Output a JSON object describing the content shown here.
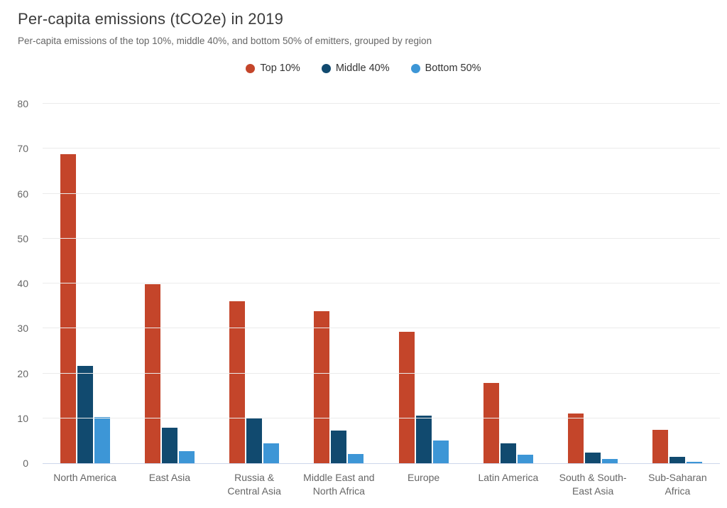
{
  "header": {
    "title": "Per-capita emissions (tCO2e) in 2019",
    "subtitle": "Per-capita emissions of the top 10%, middle 40%, and bottom 50% of emitters, grouped by region"
  },
  "colors": {
    "background": "#ffffff",
    "grid": "#ebebeb",
    "axis_line": "#ccd6eb",
    "title_text": "#3b3b3b",
    "muted_text": "#666666",
    "legend_text": "#333333",
    "top10": "#c4452a",
    "middle40": "#114a6f",
    "bottom50": "#3d96d6"
  },
  "chart_data": {
    "type": "bar",
    "title": "Per-capita emissions (tCO2e) in 2019",
    "subtitle": "Per-capita emissions of the top 10%, middle 40%, and bottom 50% of emitters, grouped by region",
    "categories": [
      "North America",
      "East Asia",
      "Russia &\nCentral Asia",
      "Middle East and\nNorth Africa",
      "Europe",
      "Latin America",
      "South & South-\nEast Asia",
      "Sub-Saharan\nAfrica"
    ],
    "series": [
      {
        "name": "Top 10%",
        "color": "#c4452a",
        "values": [
          68.7,
          39.9,
          36.0,
          33.8,
          29.3,
          17.8,
          11.1,
          7.4
        ]
      },
      {
        "name": "Middle 40%",
        "color": "#114a6f",
        "values": [
          21.6,
          7.9,
          9.9,
          7.3,
          10.6,
          4.5,
          2.3,
          1.5
        ]
      },
      {
        "name": "Bottom 50%",
        "color": "#3d96d6",
        "values": [
          10.3,
          2.7,
          4.4,
          2.1,
          5.0,
          1.9,
          0.9,
          0.3
        ]
      }
    ],
    "xlabel": "",
    "ylabel": "",
    "ylim": [
      0,
      80
    ],
    "yticks": [
      0,
      10,
      20,
      30,
      40,
      50,
      60,
      70,
      80
    ],
    "grid": true,
    "legend_position": "top-center"
  }
}
